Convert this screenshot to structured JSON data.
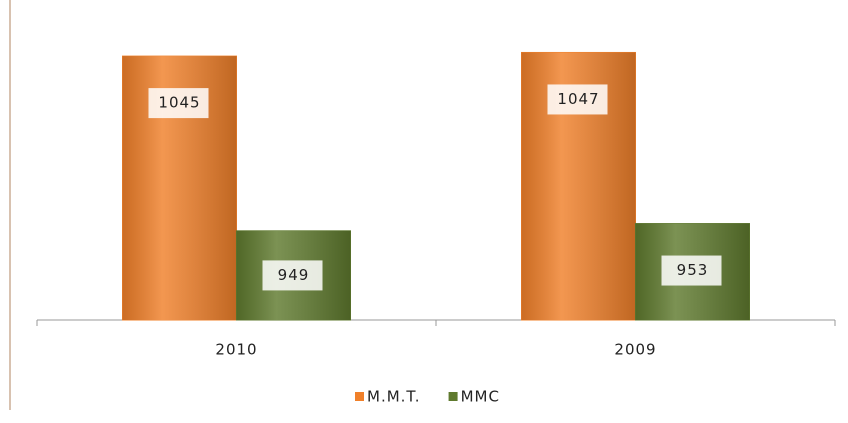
{
  "chart_data": {
    "type": "bar",
    "categories": [
      "2010",
      "2009"
    ],
    "series": [
      {
        "name": "M.M.T.",
        "color": "#f0802a",
        "values": [
          1045,
          1047
        ]
      },
      {
        "name": "MMC",
        "color": "#5f7a2e",
        "values": [
          949,
          953
        ]
      }
    ],
    "ylim": [
      900,
      1050
    ],
    "legend": "bottom"
  }
}
